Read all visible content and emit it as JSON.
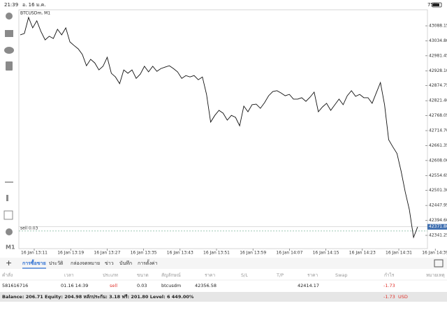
{
  "status_bar": {
    "time": "21:39",
    "date": "อ. 16 ม.ค.",
    "battery": "75%"
  },
  "toolbar": {
    "timeframe": "M1"
  },
  "chart": {
    "symbol": "BTCUSDm, M1",
    "yticks": [
      43088.15,
      {
        "value": 43034.8,
        "label": "43034.80"
      },
      42981.45,
      {
        "value": 42928.1,
        "label": "42928.10"
      },
      42874.75,
      {
        "value": 42821.4,
        "label": "42821.40"
      },
      42768.05,
      {
        "value": 42714.7,
        "label": "42714.70"
      },
      42661.35,
      {
        "value": 42608,
        "label": "42608.00"
      },
      42554.65,
      {
        "value": 42501.3,
        "label": "42501.30"
      },
      42447.95,
      {
        "value": 42394.6,
        "label": "42394.60"
      },
      42341.25
    ],
    "xticks": [
      "16 Jan 13:11",
      "16 Jan 13:19",
      "16 Jan 13:27",
      "16 Jan 13:35",
      "16 Jan 13:43",
      "16 Jan 13:51",
      "16 Jan 13:59",
      "16 Jan 14:07",
      "16 Jan 14:15",
      "16 Jan 14:23",
      "16 Jan 14:31",
      "16 Jan 14:39"
    ],
    "current_price": {
      "value": 42371.8,
      "label": "42371.80"
    },
    "order_line": {
      "label": "sell 0.03",
      "price": 42356.58
    },
    "values": [
      43056,
      43061,
      43118,
      43081,
      43106,
      43068,
      43038,
      43051,
      43043,
      43076,
      43056,
      43081,
      43031,
      43018,
      43006,
      42986,
      42946,
      42969,
      42956,
      42931,
      42944,
      42976,
      42919,
      42906,
      42882,
      42931,
      42919,
      42931,
      42901,
      42916,
      42944,
      42924,
      42944,
      42926,
      42936,
      42941,
      42946,
      42936,
      42924,
      42901,
      42911,
      42906,
      42911,
      42896,
      42906,
      42844,
      42745,
      42769,
      42787,
      42777,
      42752,
      42769,
      42762,
      42732,
      42802,
      42782,
      42807,
      42809,
      42794,
      42814,
      42839,
      42854,
      42857,
      42849,
      42839,
      42844,
      42827,
      42827,
      42832,
      42819,
      42834,
      42852,
      42782,
      42799,
      42812,
      42787,
      42807,
      42827,
      42807,
      42839,
      42857,
      42837,
      42844,
      42832,
      42832,
      42812,
      42849,
      42886,
      42807,
      42682,
      42657,
      42633,
      42570,
      42496,
      42433,
      42334,
      42371.8
    ]
  },
  "tabs": [
    "การซื้อขาย",
    "ประวัติ",
    "กล่องจดหมาย",
    "ข่าว",
    "บันทึก",
    "การตั้งค่า"
  ],
  "table": {
    "headers": [
      "คำสั่ง",
      "เวลา",
      "ประเภท",
      "ขนาด",
      "สัญลักษณ์",
      "ราคา",
      "S/L",
      "T/P",
      "ราคา",
      "Swap",
      "กำไร",
      "หมายเหตุ"
    ],
    "row": {
      "order": "581616716",
      "time": "01.16 14:39",
      "type": "sell",
      "volume": "0.03",
      "symbol": "btcusdm",
      "open_price": "42356.58",
      "price": "42414.17",
      "profit": "-1.73"
    }
  },
  "footer": {
    "summary": "Balance: 206.71 Equity: 204.98 หลักประกัน: 3.18 ฟรี: 201.80 Level: 6 449.00%",
    "profit": "-1.73",
    "currency": "USD"
  }
}
